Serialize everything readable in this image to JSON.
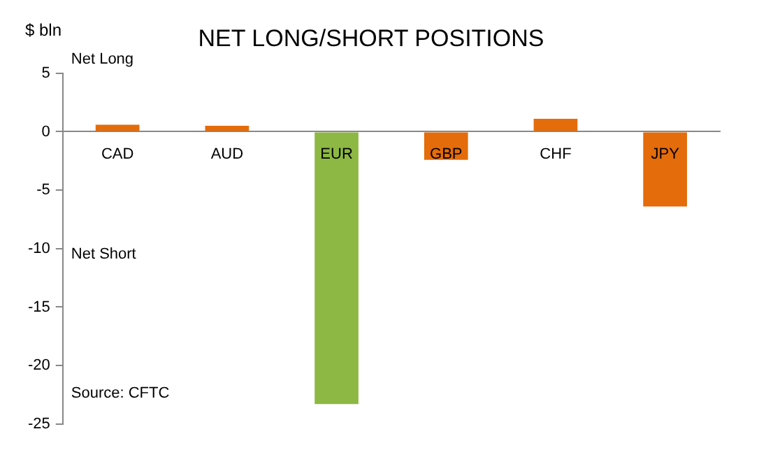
{
  "chart_data": {
    "type": "bar",
    "title": "NET LONG/SHORT POSITIONS",
    "ylabel": "$ bln",
    "categories": [
      "CAD",
      "AUD",
      "EUR",
      "GBP",
      "CHF",
      "JPY"
    ],
    "values": [
      0.6,
      0.5,
      -23.3,
      -2.4,
      1.1,
      -6.4
    ],
    "colors": [
      "#e46c0a",
      "#e46c0a",
      "#8db843",
      "#e46c0a",
      "#e46c0a",
      "#e46c0a"
    ],
    "ylim": [
      -25,
      5
    ],
    "yticks": [
      -25,
      -20,
      -15,
      -10,
      -5,
      0,
      5
    ],
    "grid": false,
    "legend": false,
    "annotations": [
      "Net Long",
      "Net Short",
      "Source: CFTC"
    ]
  }
}
